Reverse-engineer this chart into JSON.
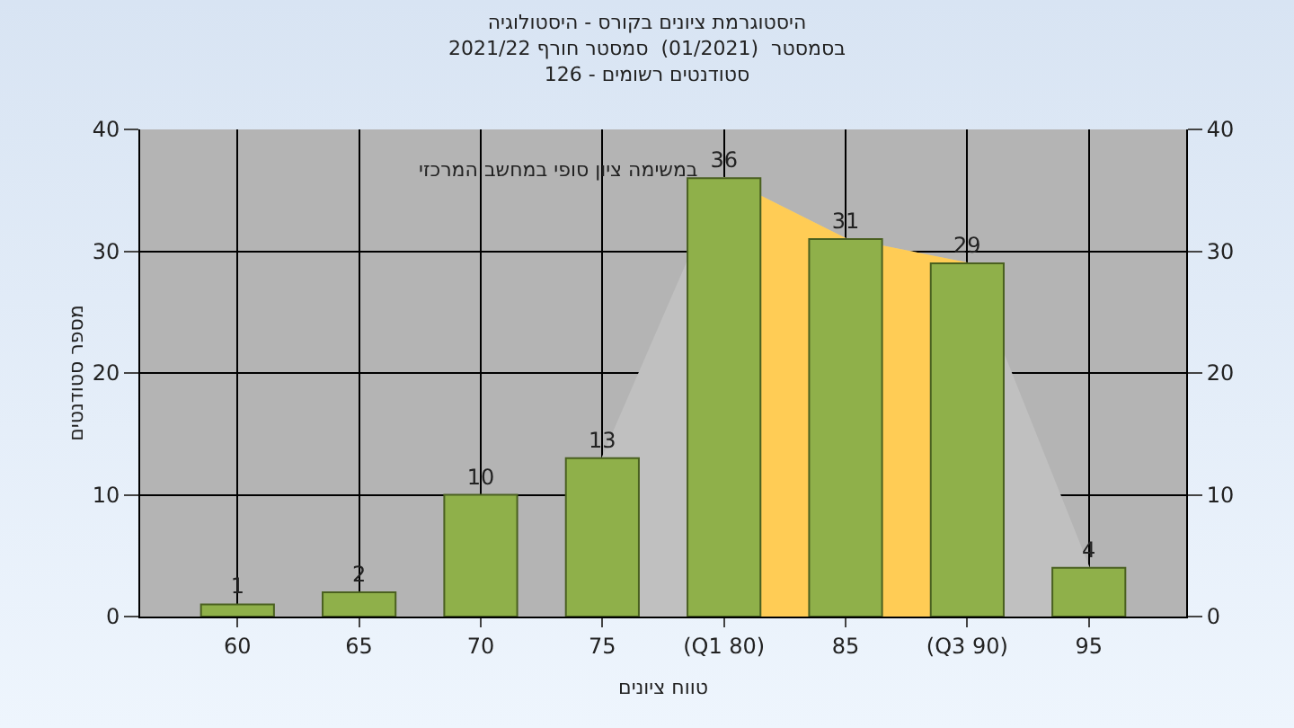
{
  "chart_data": {
    "type": "bar",
    "title": "היסטוגרמת ציונים בקורס - היסטולוגיה",
    "subtitle": "בסמסטר  (01/2021)  סמסטר חורף 2021/22\nסטודנטים רשומים - 126",
    "xlabel": "טווח ציונים",
    "ylabel": "מספר סטודנטים",
    "annotations": [
      "במשימה ציון סופי במחשב המרכזי"
    ],
    "categories": [
      "60",
      "65",
      "70",
      "75",
      "(Q1 80)",
      "85",
      "(Q3 90)",
      "95"
    ],
    "series": [
      {
        "type": "area",
        "color": "#c0c0c0",
        "values": [
          null,
          null,
          null,
          13,
          36,
          31,
          29,
          4
        ]
      },
      {
        "type": "area",
        "color": "#ffcc55",
        "values": [
          null,
          null,
          null,
          null,
          36,
          31,
          29,
          null
        ]
      },
      {
        "color": "#8fb04a",
        "values": [
          1,
          2,
          10,
          13,
          36,
          31,
          29,
          4
        ],
        "data_labels": true
      }
    ],
    "ylim": [
      0,
      40
    ],
    "yticks": [
      0,
      10,
      20,
      30,
      40
    ],
    "y2lim": [
      0,
      40
    ],
    "y2ticks": [
      0,
      10,
      20,
      30,
      40
    ],
    "grid": true
  }
}
